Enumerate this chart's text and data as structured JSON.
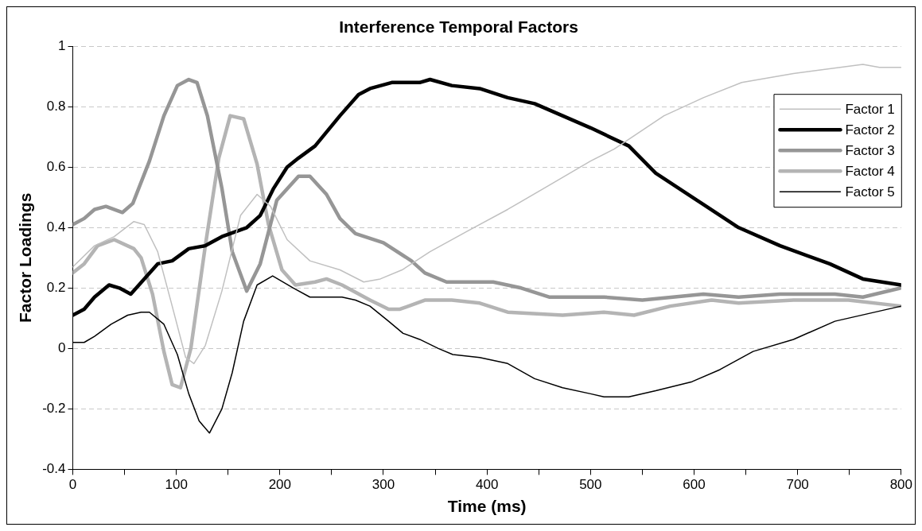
{
  "chart_data": {
    "type": "line",
    "title": "Interference Temporal Factors",
    "xlabel": "Time (ms)",
    "ylabel": "Factor Loadings",
    "xlim": [
      0,
      800
    ],
    "xticks": [
      0,
      {
        "value": 50,
        "label": null
      },
      100,
      {
        "value": 150,
        "label": null
      },
      200,
      {
        "value": 250,
        "label": null
      },
      300,
      {
        "value": 350,
        "label": null
      },
      400,
      {
        "value": 450,
        "label": null
      },
      500,
      {
        "value": 550,
        "label": null
      },
      600,
      {
        "value": 650,
        "label": null
      },
      700,
      {
        "value": 750,
        "label": null
      },
      800
    ],
    "ylim": [
      -0.4,
      1
    ],
    "yticks": [
      -0.4,
      -0.2,
      0,
      0.2,
      0.4,
      0.6,
      0.8,
      1
    ],
    "grid": "y",
    "legend": "top right",
    "marker": "none",
    "line_style": "solid",
    "series": [
      {
        "name": "Factor 1",
        "color": "#c0c0c0",
        "x": [
          0,
          21,
          40,
          59,
          69,
          82,
          96,
          109,
          117,
          128,
          144,
          162,
          178,
          191,
          207,
          229,
          258,
          281,
          297,
          318,
          345,
          382,
          420,
          460,
          500,
          523,
          571,
          609,
          646,
          696,
          763,
          779,
          800
        ],
        "values": [
          0.27,
          0.34,
          0.37,
          0.42,
          0.41,
          0.32,
          0.14,
          -0.03,
          -0.05,
          0.01,
          0.19,
          0.44,
          0.51,
          0.47,
          0.36,
          0.29,
          0.26,
          0.22,
          0.23,
          0.26,
          0.32,
          0.39,
          0.46,
          0.54,
          0.62,
          0.66,
          0.77,
          0.83,
          0.88,
          0.91,
          0.94,
          0.93,
          0.93
        ]
      },
      {
        "name": "Factor 2",
        "color": "#000000",
        "x": [
          0,
          11,
          21,
          35,
          45,
          56,
          69,
          82,
          96,
          112,
          128,
          144,
          168,
          181,
          194,
          207,
          218,
          234,
          258,
          276,
          287,
          308,
          335,
          345,
          366,
          393,
          420,
          446,
          473,
          500,
          537,
          563,
          603,
          643,
          683,
          731,
          763,
          800
        ],
        "values": [
          0.11,
          0.13,
          0.17,
          0.21,
          0.2,
          0.18,
          0.23,
          0.28,
          0.29,
          0.33,
          0.34,
          0.37,
          0.4,
          0.44,
          0.53,
          0.6,
          0.63,
          0.67,
          0.77,
          0.84,
          0.86,
          0.88,
          0.88,
          0.89,
          0.87,
          0.86,
          0.83,
          0.81,
          0.77,
          0.73,
          0.67,
          0.58,
          0.49,
          0.4,
          0.34,
          0.28,
          0.23,
          0.21
        ]
      },
      {
        "name": "Factor 3",
        "color": "#969696",
        "x": [
          0,
          11,
          21,
          32,
          48,
          58,
          74,
          88,
          101,
          112,
          120,
          130,
          144,
          154,
          168,
          181,
          197,
          218,
          229,
          245,
          258,
          273,
          300,
          327,
          340,
          361,
          393,
          406,
          433,
          460,
          478,
          513,
          550,
          609,
          643,
          683,
          736,
          763,
          800
        ],
        "values": [
          0.41,
          0.43,
          0.46,
          0.47,
          0.45,
          0.48,
          0.62,
          0.77,
          0.87,
          0.89,
          0.88,
          0.77,
          0.53,
          0.32,
          0.19,
          0.28,
          0.49,
          0.57,
          0.57,
          0.51,
          0.43,
          0.38,
          0.35,
          0.29,
          0.25,
          0.22,
          0.22,
          0.22,
          0.2,
          0.17,
          0.17,
          0.17,
          0.16,
          0.18,
          0.17,
          0.18,
          0.18,
          0.17,
          0.2
        ]
      },
      {
        "name": "Factor 4",
        "color": "#b4b4b4",
        "x": [
          0,
          11,
          24,
          40,
          59,
          66,
          77,
          88,
          96,
          104,
          114,
          128,
          141,
          152,
          165,
          178,
          189,
          202,
          215,
          234,
          245,
          260,
          287,
          305,
          316,
          340,
          366,
          393,
          420,
          473,
          513,
          542,
          577,
          617,
          643,
          696,
          749,
          800
        ],
        "values": [
          0.25,
          0.28,
          0.34,
          0.36,
          0.33,
          0.3,
          0.18,
          -0.01,
          -0.12,
          -0.13,
          0,
          0.34,
          0.63,
          0.77,
          0.76,
          0.61,
          0.41,
          0.26,
          0.21,
          0.22,
          0.23,
          0.21,
          0.16,
          0.13,
          0.13,
          0.16,
          0.16,
          0.15,
          0.12,
          0.11,
          0.12,
          0.11,
          0.14,
          0.16,
          0.15,
          0.16,
          0.16,
          0.14
        ]
      },
      {
        "name": "Factor 5",
        "color": "#000000",
        "x": [
          0,
          11,
          21,
          37,
          53,
          66,
          74,
          88,
          101,
          112,
          122,
          132,
          144,
          154,
          165,
          178,
          193,
          213,
          229,
          245,
          260,
          273,
          287,
          305,
          319,
          335,
          353,
          367,
          393,
          420,
          446,
          473,
          500,
          513,
          537,
          563,
          598,
          625,
          657,
          696,
          736,
          800
        ],
        "values": [
          0.02,
          0.02,
          0.04,
          0.08,
          0.11,
          0.12,
          0.12,
          0.08,
          -0.02,
          -0.15,
          -0.24,
          -0.28,
          -0.2,
          -0.08,
          0.09,
          0.21,
          0.24,
          0.2,
          0.17,
          0.17,
          0.17,
          0.16,
          0.14,
          0.09,
          0.05,
          0.03,
          0,
          -0.02,
          -0.03,
          -0.05,
          -0.1,
          -0.13,
          -0.15,
          -0.16,
          -0.16,
          -0.14,
          -0.11,
          -0.07,
          -0.01,
          0.03,
          0.09,
          0.14
        ]
      }
    ]
  }
}
